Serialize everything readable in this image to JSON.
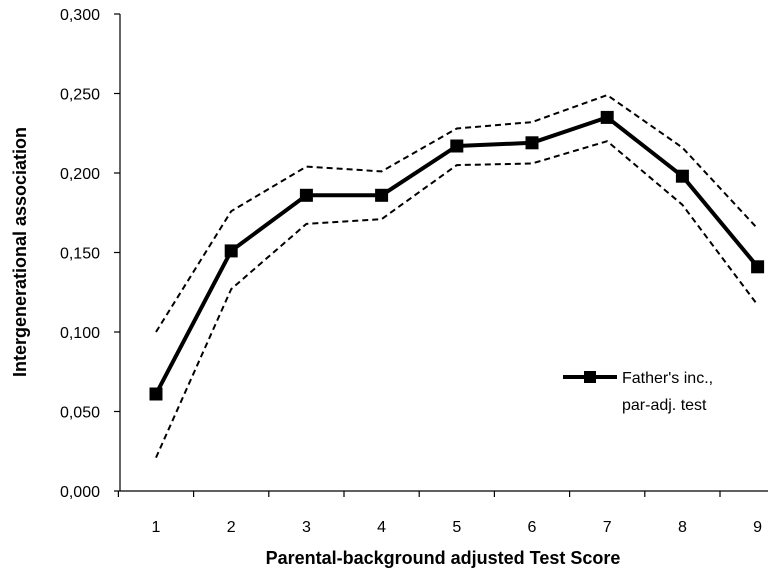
{
  "chart_data": {
    "type": "line",
    "x": [
      1,
      2,
      3,
      4,
      5,
      6,
      7,
      8,
      9
    ],
    "x_tick_labels": [
      "1",
      "2",
      "3",
      "4",
      "5",
      "6",
      "7",
      "8",
      "9"
    ],
    "y_tick_values": [
      0,
      0.05,
      0.1,
      0.15,
      0.2,
      0.25,
      0.3
    ],
    "y_tick_labels": [
      "0,000",
      "0,050",
      "0,100",
      "0,150",
      "0,200",
      "0,250",
      "0,300"
    ],
    "ylim": [
      0,
      0.3
    ],
    "xlabel": "Parental-background adjusted Test Score",
    "ylabel": "Intergenerational association",
    "grid": false,
    "legend_position": "right",
    "series": [
      {
        "name": "Father's inc., par-adj. test",
        "legend_lines": [
          "Father's inc.,",
          "par-adj. test"
        ],
        "style": "solid-with-square-markers",
        "color": "#000000",
        "values": [
          0.061,
          0.151,
          0.186,
          0.186,
          0.217,
          0.219,
          0.235,
          0.198,
          0.141
        ]
      },
      {
        "style": "dashed",
        "color": "#000000",
        "values": [
          0.1,
          0.176,
          0.204,
          0.201,
          0.228,
          0.232,
          0.249,
          0.216,
          0.165
        ]
      },
      {
        "style": "dashed",
        "color": "#000000",
        "values": [
          0.021,
          0.127,
          0.168,
          0.171,
          0.205,
          0.206,
          0.22,
          0.18,
          0.117
        ]
      }
    ]
  }
}
